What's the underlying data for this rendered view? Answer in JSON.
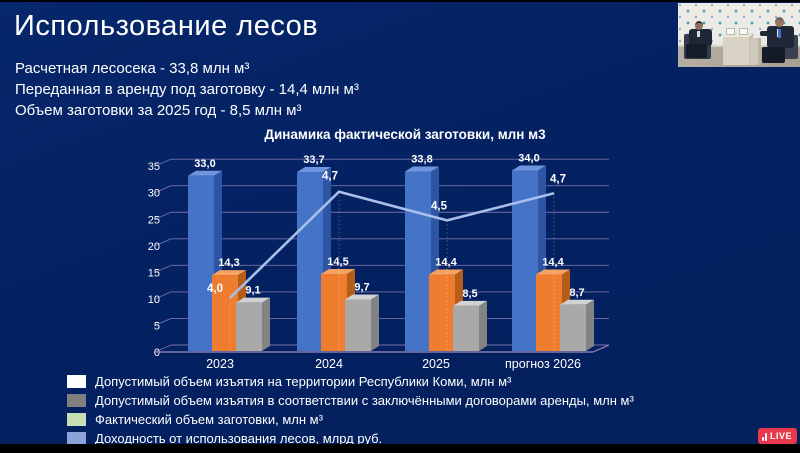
{
  "slide": {
    "title": "Использование лесов",
    "bullets": [
      "Расчетная лесосека - 33,8 млн м³",
      "Переданная в аренду под заготовку - 14,4 млн м³",
      "Объем заготовки за 2025 год - 8,5 млн м³"
    ]
  },
  "chart_data": {
    "type": "bar",
    "title": "Динамика фактической заготовки, млн м3",
    "categories": [
      "2023",
      "2024",
      "2025",
      "прогноз 2026"
    ],
    "y_axis": {
      "min": 0,
      "max": 35,
      "step": 5,
      "ticks": [
        0,
        5,
        10,
        15,
        20,
        25,
        30,
        35
      ]
    },
    "grid": true,
    "legend_position": "bottom-left",
    "series": [
      {
        "name": "Допустимый объем изъятия на территории Республики Коми, млн м³",
        "type": "bar",
        "values": [
          33.0,
          33.7,
          33.8,
          34.0
        ],
        "labels": [
          "33,0",
          "33,7",
          "33,8",
          "34,0"
        ],
        "color": "#4573c8",
        "color_top": "#6e95de",
        "color_side": "#2d55a3"
      },
      {
        "name": "Допустимый объем изъятия в соответствии с заключёнными договорами аренды, млн м³",
        "type": "bar",
        "values": [
          14.3,
          14.5,
          14.4,
          14.4
        ],
        "labels": [
          "14,3",
          "14,5",
          "14,4",
          "14,4"
        ],
        "color": "#ee7d2f",
        "color_top": "#f5a263",
        "color_side": "#b55c17"
      },
      {
        "name": "Фактический объем заготовки, млн м³",
        "type": "bar",
        "values": [
          9.1,
          9.7,
          8.5,
          8.7
        ],
        "labels": [
          "9,1",
          "9,7",
          "8,5",
          "8,7"
        ],
        "color": "#a9a9a9",
        "color_top": "#d2d2d2",
        "color_side": "#838383"
      },
      {
        "name": "Доходность от использования лесов, млрд руб.",
        "type": "line",
        "values": [
          4.0,
          4.7,
          4.5,
          4.7
        ],
        "labels": [
          "4,0",
          "4,7",
          "4,5",
          "4,7"
        ],
        "color": "#a9bfe9",
        "display_heights": [
          10,
          30,
          24.6,
          29.7
        ]
      }
    ]
  },
  "legend": {
    "items": [
      {
        "swatch": "#ffffff",
        "label": "Допустимый объем изъятия на территории Республики Коми, млн м³"
      },
      {
        "swatch": "#7f7f7f",
        "label": "Допустимый объем изъятия в соответствии с заключёнными договорами аренды, млн м³"
      },
      {
        "swatch": "#c5deb3",
        "label": "Фактический объем заготовки, млн м³"
      },
      {
        "swatch": "#8ba3d6",
        "label": "Доходность от использования лесов, млрд руб."
      }
    ]
  },
  "live_badge": {
    "label": "LIVE",
    "color": "#e8394d"
  },
  "colors": {
    "slide_bg": "#042161",
    "grid": "#9b8cc0",
    "text": "#ffffff"
  }
}
